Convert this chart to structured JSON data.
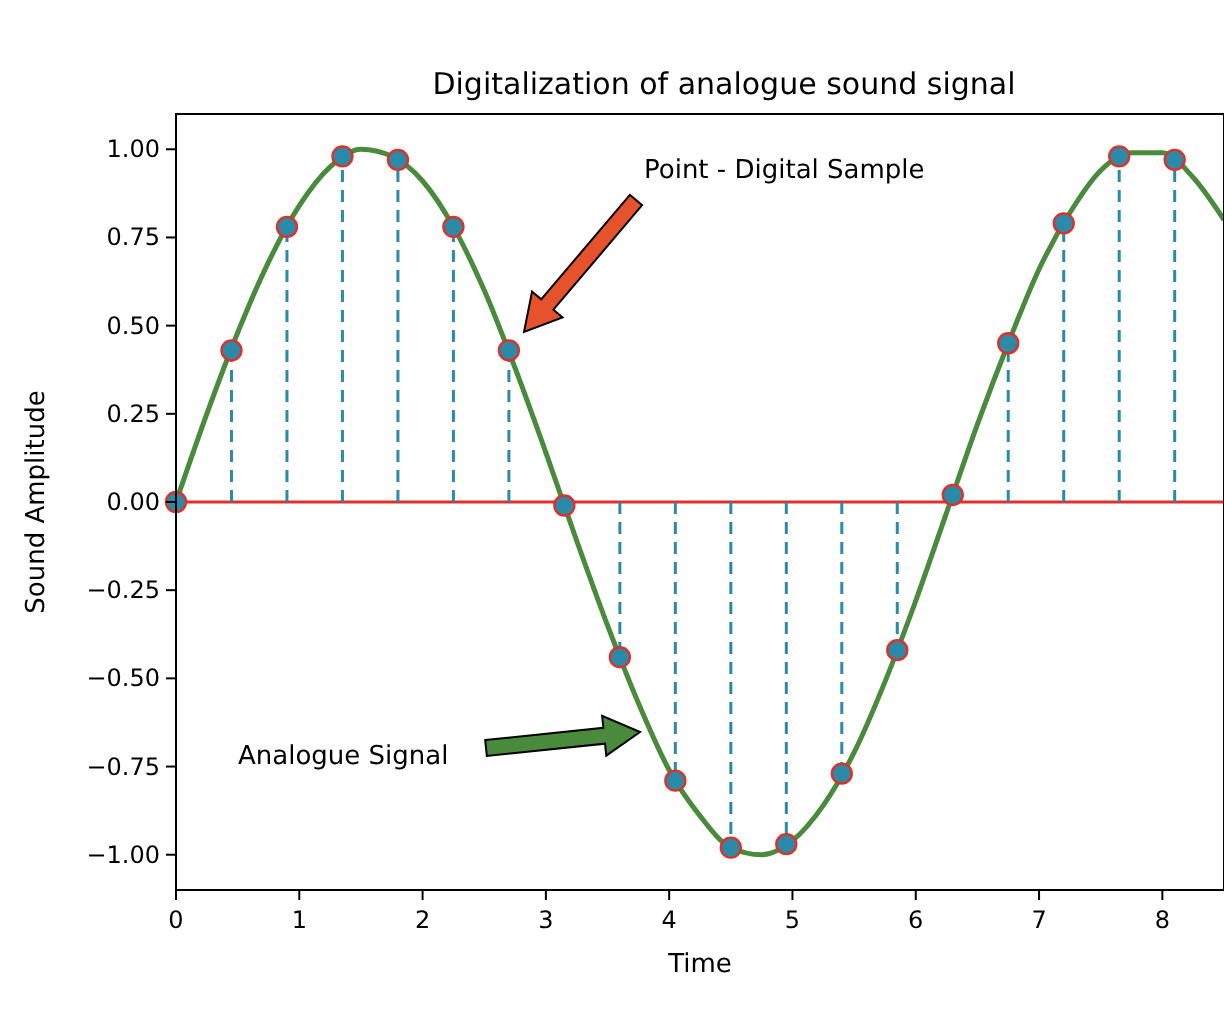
{
  "chart_data": {
    "type": "lollipop",
    "title": "Digitalization of analogue sound signal",
    "xlabel": "Time",
    "ylabel": "Sound Amplitude",
    "xlim": [
      0,
      8.5
    ],
    "ylim": [
      -1.1,
      1.1
    ],
    "xticks": [
      0,
      1,
      2,
      3,
      4,
      5,
      6,
      7,
      8
    ],
    "yticks": [
      {
        "value": -1,
        "label": "−1.00"
      },
      {
        "value": -0.75,
        "label": "−0.75"
      },
      {
        "value": -0.5,
        "label": "−0.50"
      },
      {
        "value": -0.25,
        "label": "−0.25"
      },
      {
        "value": 0,
        "label": "0.00"
      },
      {
        "value": 0.25,
        "label": "0.25"
      },
      {
        "value": 0.5,
        "label": "0.50"
      },
      {
        "value": 0.75,
        "label": "0.75"
      },
      {
        "value": 1,
        "label": "1.00"
      }
    ],
    "grid": false,
    "series": [
      {
        "type": "line",
        "color": "#4a8a3c",
        "line_style": "solid",
        "marker": "none",
        "x": [
          0,
          0.25,
          0.5,
          0.75,
          1,
          1.25,
          1.5,
          1.75,
          2,
          2.25,
          2.5,
          2.75,
          3,
          3.25,
          3.5,
          3.75,
          4,
          4.25,
          4.5,
          4.75,
          5,
          5.25,
          5.5,
          5.75,
          6,
          6.25,
          6.5,
          6.75,
          7,
          7.25,
          7.5,
          7.75,
          8,
          8.25,
          8.5
        ],
        "values": [
          0,
          0.25,
          0.48,
          0.68,
          0.84,
          0.95,
          1,
          0.98,
          0.91,
          0.78,
          0.6,
          0.38,
          0.14,
          -0.11,
          -0.35,
          -0.57,
          -0.76,
          -0.89,
          -0.98,
          -1,
          -0.96,
          -0.86,
          -0.71,
          -0.51,
          -0.28,
          -0.03,
          0.22,
          0.45,
          0.66,
          0.82,
          0.94,
          0.99,
          0.99,
          0.92,
          0.8
        ]
      },
      {
        "color": "#2a8aa8",
        "line_style": "dashed",
        "marker": "circle",
        "x": [
          0,
          0.45,
          0.9,
          1.35,
          1.8,
          2.25,
          2.7,
          3.15,
          3.6,
          4.05,
          4.5,
          4.95,
          5.4,
          5.85,
          6.3,
          6.75,
          7.2,
          7.65,
          8.1
        ],
        "values": [
          0,
          0.43,
          0.78,
          0.98,
          0.97,
          0.78,
          0.43,
          -0.01,
          -0.44,
          -0.79,
          -0.98,
          -0.97,
          -0.77,
          -0.42,
          0.02,
          0.45,
          0.79,
          0.98,
          0.97
        ]
      }
    ],
    "ref_lines": [
      {
        "axis": "y",
        "value": 0,
        "color": "#e0302a",
        "line_style": "solid"
      }
    ],
    "annotations": [
      "Point - Digital Sample",
      "Analogue Signal"
    ]
  }
}
